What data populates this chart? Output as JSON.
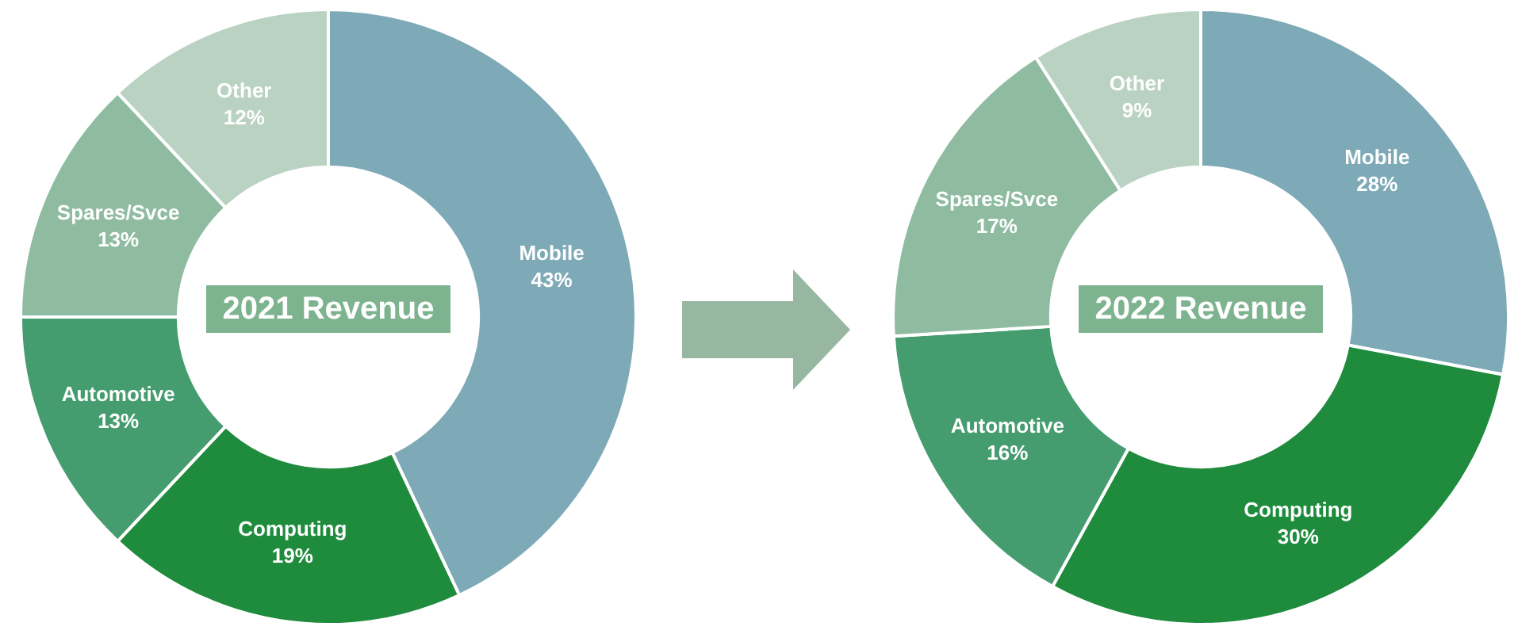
{
  "chart_data": [
    {
      "type": "donut",
      "title": "2021 Revenue",
      "categories": [
        "Mobile",
        "Computing",
        "Automotive",
        "Spares/Svce",
        "Other"
      ],
      "values": [
        43,
        19,
        13,
        13,
        12
      ],
      "value_labels": [
        "43%",
        "19%",
        "13%",
        "13%",
        "12%"
      ],
      "colors": [
        "#7eaab7",
        "#1e8b3d",
        "#459c6f",
        "#8fbca1",
        "#bad2c2"
      ]
    },
    {
      "type": "donut",
      "title": "2022 Revenue",
      "categories": [
        "Mobile",
        "Computing",
        "Automotive",
        "Spares/Svce",
        "Other"
      ],
      "values": [
        28,
        30,
        16,
        17,
        9
      ],
      "value_labels": [
        "28%",
        "30%",
        "16%",
        "17%",
        "9%"
      ],
      "colors": [
        "#7eaab7",
        "#1e8b3d",
        "#459c6f",
        "#8fbca1",
        "#bad2c2"
      ]
    }
  ]
}
